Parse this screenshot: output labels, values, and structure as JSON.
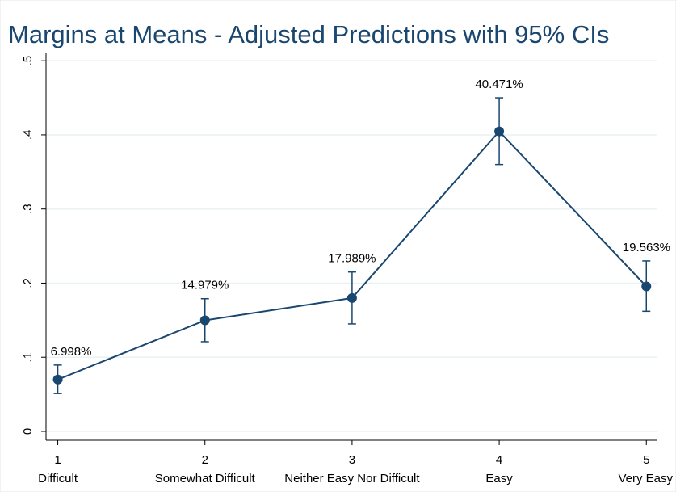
{
  "chart_data": {
    "type": "line",
    "title": "Margins at Means - Adjusted Predictions with 95% CIs",
    "x": [
      1,
      2,
      3,
      4,
      5
    ],
    "categories": [
      "Difficult",
      "Somewhat Difficult",
      "Neither Easy Nor Difficult",
      "Easy",
      "Very Easy"
    ],
    "values": [
      0.06998,
      0.14979,
      0.17989,
      0.40471,
      0.19563
    ],
    "value_labels": [
      "6.998%",
      "14.979%",
      "17.989%",
      "40.471%",
      "19.563%"
    ],
    "ci_lower": [
      0.051,
      0.121,
      0.145,
      0.36,
      0.162
    ],
    "ci_upper": [
      0.0895,
      0.179,
      0.215,
      0.45,
      0.23
    ],
    "color": "#1a476f",
    "xlim": [
      0.92,
      5.07
    ],
    "xticks": [
      1,
      2,
      3,
      4,
      5
    ],
    "ylim": [
      -0.012,
      0.51
    ],
    "yticks": [
      0,
      {
        "value": 0.1,
        "label": ".1"
      },
      {
        "value": 0.2,
        "label": ".2"
      },
      {
        "value": 0.3,
        "label": ".3"
      },
      {
        "value": 0.4,
        "label": ".4"
      },
      {
        "value": 0.5,
        "label": ".5"
      }
    ],
    "grid": true
  }
}
